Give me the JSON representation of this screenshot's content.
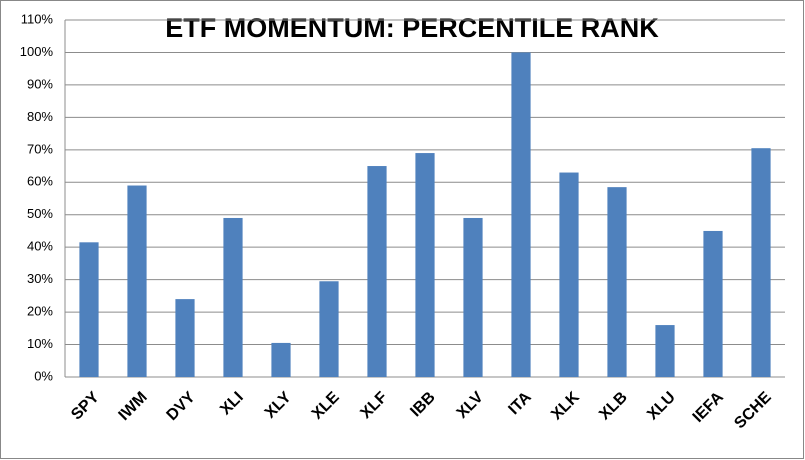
{
  "chart_data": {
    "type": "bar",
    "title": "ETF MOMENTUM: PERCENTILE RANK",
    "categories": [
      "SPY",
      "IWM",
      "DVY",
      "XLI",
      "XLY",
      "XLE",
      "XLF",
      "IBB",
      "XLV",
      "ITA",
      "XLK",
      "XLB",
      "XLU",
      "IEFA",
      "SCHE"
    ],
    "values": [
      41.5,
      59,
      24,
      49,
      10.5,
      29.5,
      65,
      69,
      49,
      100,
      63,
      58.5,
      16,
      45,
      70.5
    ],
    "color": "#4f81bd",
    "ylim": [
      0,
      110
    ],
    "yticks": [
      {
        "value": 0,
        "label": "0%"
      },
      {
        "value": 10,
        "label": "10%"
      },
      {
        "value": 20,
        "label": "20%"
      },
      {
        "value": 30,
        "label": "30%"
      },
      {
        "value": 40,
        "label": "40%"
      },
      {
        "value": 50,
        "label": "50%"
      },
      {
        "value": 60,
        "label": "60%"
      },
      {
        "value": 70,
        "label": "70%"
      },
      {
        "value": 80,
        "label": "80%"
      },
      {
        "value": 90,
        "label": "90%"
      },
      {
        "value": 100,
        "label": "100%"
      },
      {
        "value": 110,
        "label": "110%"
      }
    ],
    "grid": true
  }
}
